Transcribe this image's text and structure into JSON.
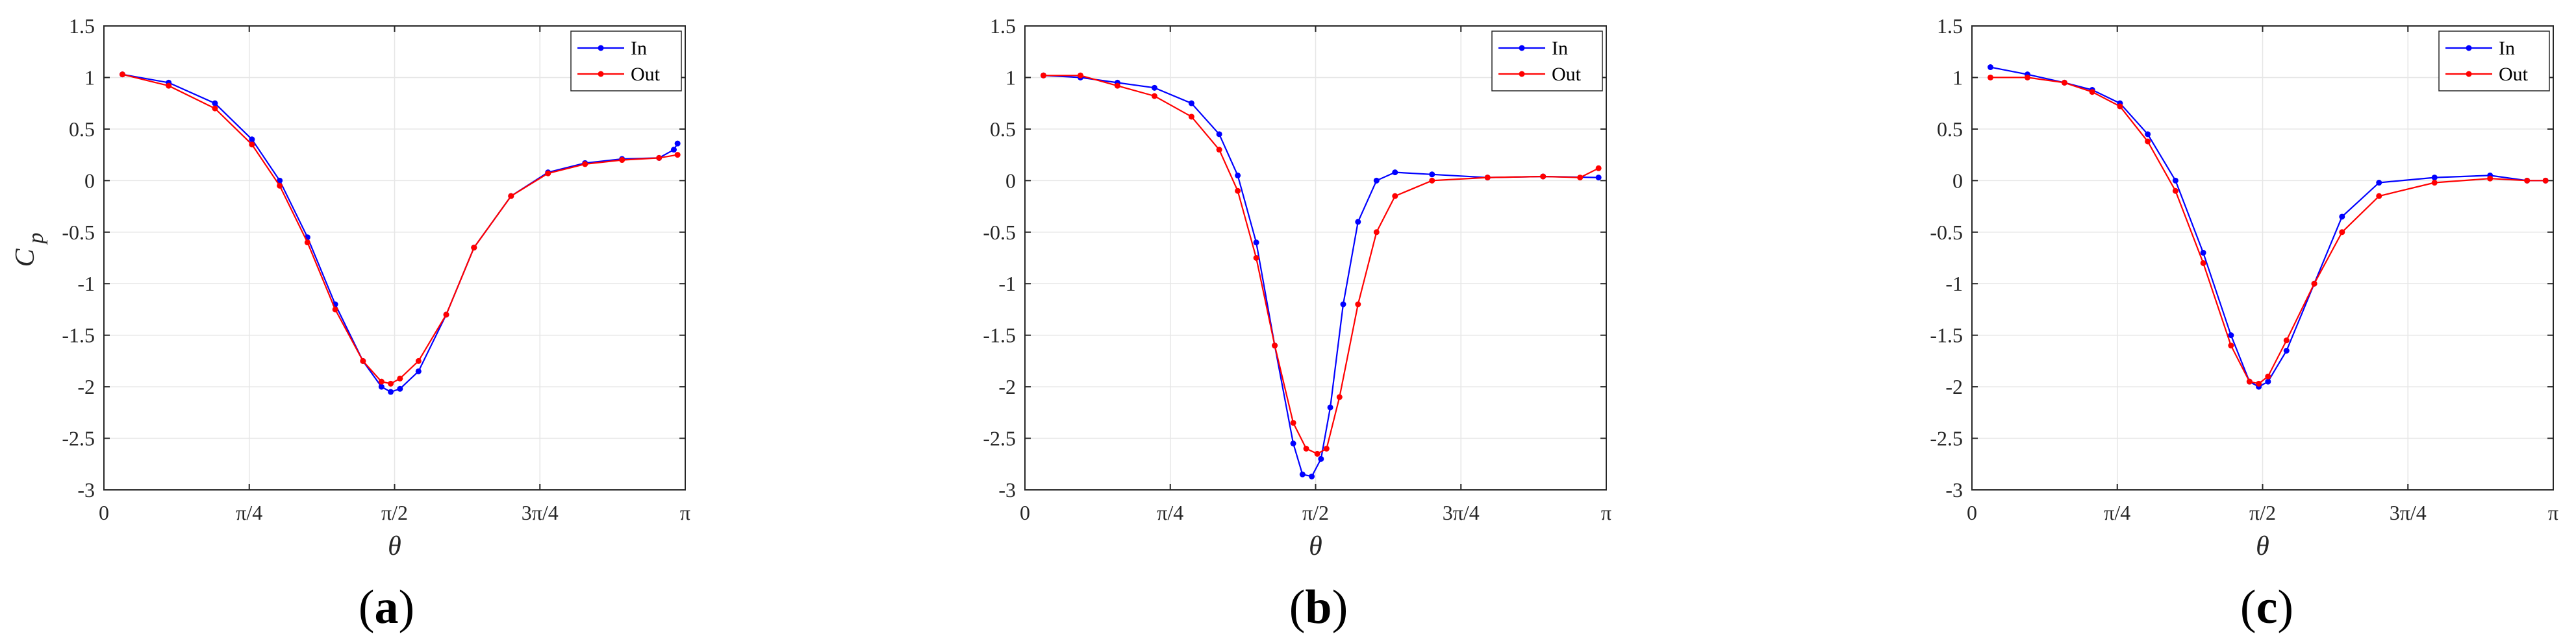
{
  "chart_data": [
    {
      "type": "line",
      "panel_label": "a",
      "xlabel": "θ",
      "ylabel": "C",
      "ylabel_sub": "p",
      "xlim": [
        0,
        3.14159
      ],
      "ylim": [
        -3,
        1.5
      ],
      "x_ticks": [
        {
          "value": 0,
          "label": "0"
        },
        {
          "value": 0.7854,
          "label": "π/4"
        },
        {
          "value": 1.5708,
          "label": "π/2"
        },
        {
          "value": 2.3562,
          "label": "3π/4"
        },
        {
          "value": 3.14159,
          "label": "π"
        }
      ],
      "y_ticks": [
        {
          "value": 1.5,
          "label": "1.5"
        },
        {
          "value": 1,
          "label": "1"
        },
        {
          "value": 0.5,
          "label": "0.5"
        },
        {
          "value": 0,
          "label": "0"
        },
        {
          "value": -0.5,
          "label": "-0.5"
        },
        {
          "value": -1,
          "label": "-1"
        },
        {
          "value": -1.5,
          "label": "-1.5"
        },
        {
          "value": -2,
          "label": "-2"
        },
        {
          "value": -2.5,
          "label": "-2.5"
        },
        {
          "value": -3,
          "label": "-3"
        }
      ],
      "legend": [
        "In",
        "Out"
      ],
      "series": [
        {
          "name": "In",
          "color": "#0000ff",
          "x": [
            0.1,
            0.35,
            0.6,
            0.8,
            0.95,
            1.1,
            1.25,
            1.4,
            1.5,
            1.55,
            1.6,
            1.7,
            1.85,
            2.0,
            2.2,
            2.4,
            2.6,
            2.8,
            3.0,
            3.08,
            3.1
          ],
          "y": [
            1.03,
            0.95,
            0.75,
            0.4,
            0.0,
            -0.55,
            -1.2,
            -1.75,
            -2.0,
            -2.05,
            -2.02,
            -1.85,
            -1.3,
            -0.65,
            -0.15,
            0.08,
            0.17,
            0.21,
            0.22,
            0.3,
            0.36
          ]
        },
        {
          "name": "Out",
          "color": "#ff0000",
          "x": [
            0.1,
            0.35,
            0.6,
            0.8,
            0.95,
            1.1,
            1.25,
            1.4,
            1.5,
            1.55,
            1.6,
            1.7,
            1.85,
            2.0,
            2.2,
            2.4,
            2.6,
            2.8,
            3.0,
            3.1
          ],
          "y": [
            1.03,
            0.92,
            0.7,
            0.35,
            -0.05,
            -0.6,
            -1.25,
            -1.75,
            -1.95,
            -1.97,
            -1.92,
            -1.75,
            -1.3,
            -0.65,
            -0.15,
            0.07,
            0.16,
            0.2,
            0.22,
            0.25
          ]
        }
      ]
    },
    {
      "type": "line",
      "panel_label": "b",
      "xlabel": "θ",
      "ylabel": "",
      "xlim": [
        0,
        3.14159
      ],
      "ylim": [
        -3,
        1.5
      ],
      "x_ticks": [
        {
          "value": 0,
          "label": "0"
        },
        {
          "value": 0.7854,
          "label": "π/4"
        },
        {
          "value": 1.5708,
          "label": "π/2"
        },
        {
          "value": 2.3562,
          "label": "3π/4"
        },
        {
          "value": 3.14159,
          "label": "π"
        }
      ],
      "y_ticks": [
        {
          "value": 1.5,
          "label": "1.5"
        },
        {
          "value": 1,
          "label": "1"
        },
        {
          "value": 0.5,
          "label": "0.5"
        },
        {
          "value": 0,
          "label": "0"
        },
        {
          "value": -0.5,
          "label": "-0.5"
        },
        {
          "value": -1,
          "label": "-1"
        },
        {
          "value": -1.5,
          "label": "-1.5"
        },
        {
          "value": -2,
          "label": "-2"
        },
        {
          "value": -2.5,
          "label": "-2.5"
        },
        {
          "value": -3,
          "label": "-3"
        }
      ],
      "legend": [
        "In",
        "Out"
      ],
      "series": [
        {
          "name": "In",
          "color": "#0000ff",
          "x": [
            0.1,
            0.3,
            0.5,
            0.7,
            0.9,
            1.05,
            1.15,
            1.25,
            1.35,
            1.45,
            1.5,
            1.55,
            1.6,
            1.65,
            1.72,
            1.8,
            1.9,
            2.0,
            2.2,
            2.5,
            2.8,
            3.1
          ],
          "y": [
            1.02,
            1.0,
            0.95,
            0.9,
            0.75,
            0.45,
            0.05,
            -0.6,
            -1.6,
            -2.55,
            -2.85,
            -2.87,
            -2.7,
            -2.2,
            -1.2,
            -0.4,
            0.0,
            0.08,
            0.06,
            0.03,
            0.04,
            0.03
          ]
        },
        {
          "name": "Out",
          "color": "#ff0000",
          "x": [
            0.1,
            0.3,
            0.5,
            0.7,
            0.9,
            1.05,
            1.15,
            1.25,
            1.35,
            1.45,
            1.52,
            1.58,
            1.63,
            1.7,
            1.8,
            1.9,
            2.0,
            2.2,
            2.5,
            2.8,
            3.0,
            3.1
          ],
          "y": [
            1.02,
            1.02,
            0.92,
            0.82,
            0.62,
            0.3,
            -0.1,
            -0.75,
            -1.6,
            -2.35,
            -2.6,
            -2.65,
            -2.6,
            -2.1,
            -1.2,
            -0.5,
            -0.15,
            0.0,
            0.03,
            0.04,
            0.03,
            0.12
          ]
        }
      ]
    },
    {
      "type": "line",
      "panel_label": "c",
      "xlabel": "θ",
      "ylabel": "",
      "xlim": [
        0,
        3.14159
      ],
      "ylim": [
        -3,
        1.5
      ],
      "x_ticks": [
        {
          "value": 0,
          "label": "0"
        },
        {
          "value": 0.7854,
          "label": "π/4"
        },
        {
          "value": 1.5708,
          "label": "π/2"
        },
        {
          "value": 2.3562,
          "label": "3π/4"
        },
        {
          "value": 3.14159,
          "label": "π"
        }
      ],
      "y_ticks": [
        {
          "value": 1.5,
          "label": "1.5"
        },
        {
          "value": 1,
          "label": "1"
        },
        {
          "value": 0.5,
          "label": "0.5"
        },
        {
          "value": 0,
          "label": "0"
        },
        {
          "value": -0.5,
          "label": "-0.5"
        },
        {
          "value": -1,
          "label": "-1"
        },
        {
          "value": -1.5,
          "label": "-1.5"
        },
        {
          "value": -2,
          "label": "-2"
        },
        {
          "value": -2.5,
          "label": "-2.5"
        },
        {
          "value": -3,
          "label": "-3"
        }
      ],
      "legend": [
        "In",
        "Out"
      ],
      "series": [
        {
          "name": "In",
          "color": "#0000ff",
          "x": [
            0.1,
            0.3,
            0.5,
            0.65,
            0.8,
            0.95,
            1.1,
            1.25,
            1.4,
            1.5,
            1.55,
            1.6,
            1.7,
            1.85,
            2.0,
            2.2,
            2.5,
            2.8,
            3.0,
            3.1
          ],
          "y": [
            1.1,
            1.03,
            0.95,
            0.88,
            0.75,
            0.45,
            0.0,
            -0.7,
            -1.5,
            -1.95,
            -2.0,
            -1.95,
            -1.65,
            -1.0,
            -0.35,
            -0.02,
            0.03,
            0.05,
            0.0,
            0.0
          ]
        },
        {
          "name": "Out",
          "color": "#ff0000",
          "x": [
            0.1,
            0.3,
            0.5,
            0.65,
            0.8,
            0.95,
            1.1,
            1.25,
            1.4,
            1.5,
            1.55,
            1.6,
            1.7,
            1.85,
            2.0,
            2.2,
            2.5,
            2.8,
            3.0,
            3.1
          ],
          "y": [
            1.0,
            1.0,
            0.95,
            0.86,
            0.72,
            0.38,
            -0.1,
            -0.8,
            -1.6,
            -1.95,
            -1.97,
            -1.9,
            -1.55,
            -1.0,
            -0.5,
            -0.15,
            -0.02,
            0.02,
            0.0,
            0.0
          ]
        }
      ]
    }
  ]
}
